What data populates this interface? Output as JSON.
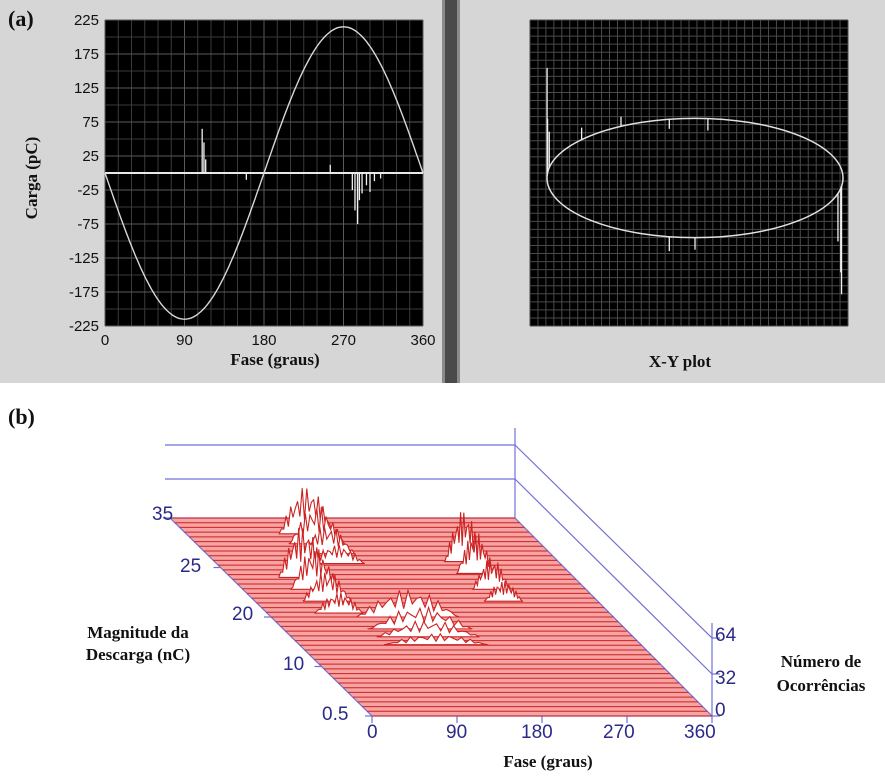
{
  "panel_a_label": "(a)",
  "panel_b_label": "(b)",
  "chart_data": [
    {
      "type": "line",
      "x_axis_label": "Fase (graus)",
      "y_axis_label": "Carga (pC)",
      "x_ticks": [
        "0",
        "90",
        "180",
        "270",
        "360"
      ],
      "y_ticks": [
        "225",
        "175",
        "125",
        "75",
        "25",
        "-25",
        "-75",
        "-125",
        "-175",
        "-225"
      ],
      "xlim": [
        0,
        360
      ],
      "ylim": [
        -225,
        225
      ],
      "grid": true,
      "background": "#000000",
      "series": [
        {
          "kind": "sine",
          "amplitude": 215,
          "x": [
            0,
            90,
            180,
            270,
            360
          ],
          "y": [
            0,
            -215,
            0,
            215,
            0
          ]
        },
        {
          "kind": "pulses",
          "x": [
            110,
            112,
            114,
            160,
            255,
            280,
            283,
            286,
            288,
            291,
            296,
            300,
            305,
            312
          ],
          "y": [
            65,
            45,
            20,
            -10,
            12,
            -25,
            -55,
            -75,
            -40,
            -30,
            -18,
            -28,
            -12,
            -8
          ]
        }
      ]
    },
    {
      "type": "scatter",
      "title": "X-Y plot",
      "grid": true,
      "background": "#000000",
      "ellipse": {
        "cx": 0,
        "cy": 0,
        "rx": 1,
        "ry": 0.78
      },
      "spikes": [
        {
          "angle": 178,
          "length": 0.9
        },
        {
          "angle": 175,
          "length": 0.45
        },
        {
          "angle": 170,
          "length": 0.3
        },
        {
          "angle": 140,
          "length": 0.1
        },
        {
          "angle": 120,
          "length": 0.08
        },
        {
          "angle": 100,
          "length": -0.08
        },
        {
          "angle": 85,
          "length": -0.1
        },
        {
          "angle": 260,
          "length": -0.12
        },
        {
          "angle": 270,
          "length": -0.1
        },
        {
          "angle": 350,
          "length": -0.7
        },
        {
          "angle": 352,
          "length": -0.9
        },
        {
          "angle": 345,
          "length": -0.4
        }
      ]
    },
    {
      "type": "area",
      "x_axis_label": "Fase (graus)",
      "y_axis_label": "Magnitude da Descarga (nC)",
      "z_axis_label": "Número de Ocorrências",
      "x_ticks": [
        "0",
        "90",
        "180",
        "270",
        "360"
      ],
      "y_ticks": [
        "0.5",
        "10",
        "20",
        "25",
        "35"
      ],
      "z_ticks": [
        "0",
        "32",
        "64"
      ],
      "line_color": "#cc2222",
      "fill_color": "#f5a3a3",
      "axis_color": "#7070d8"
    }
  ]
}
